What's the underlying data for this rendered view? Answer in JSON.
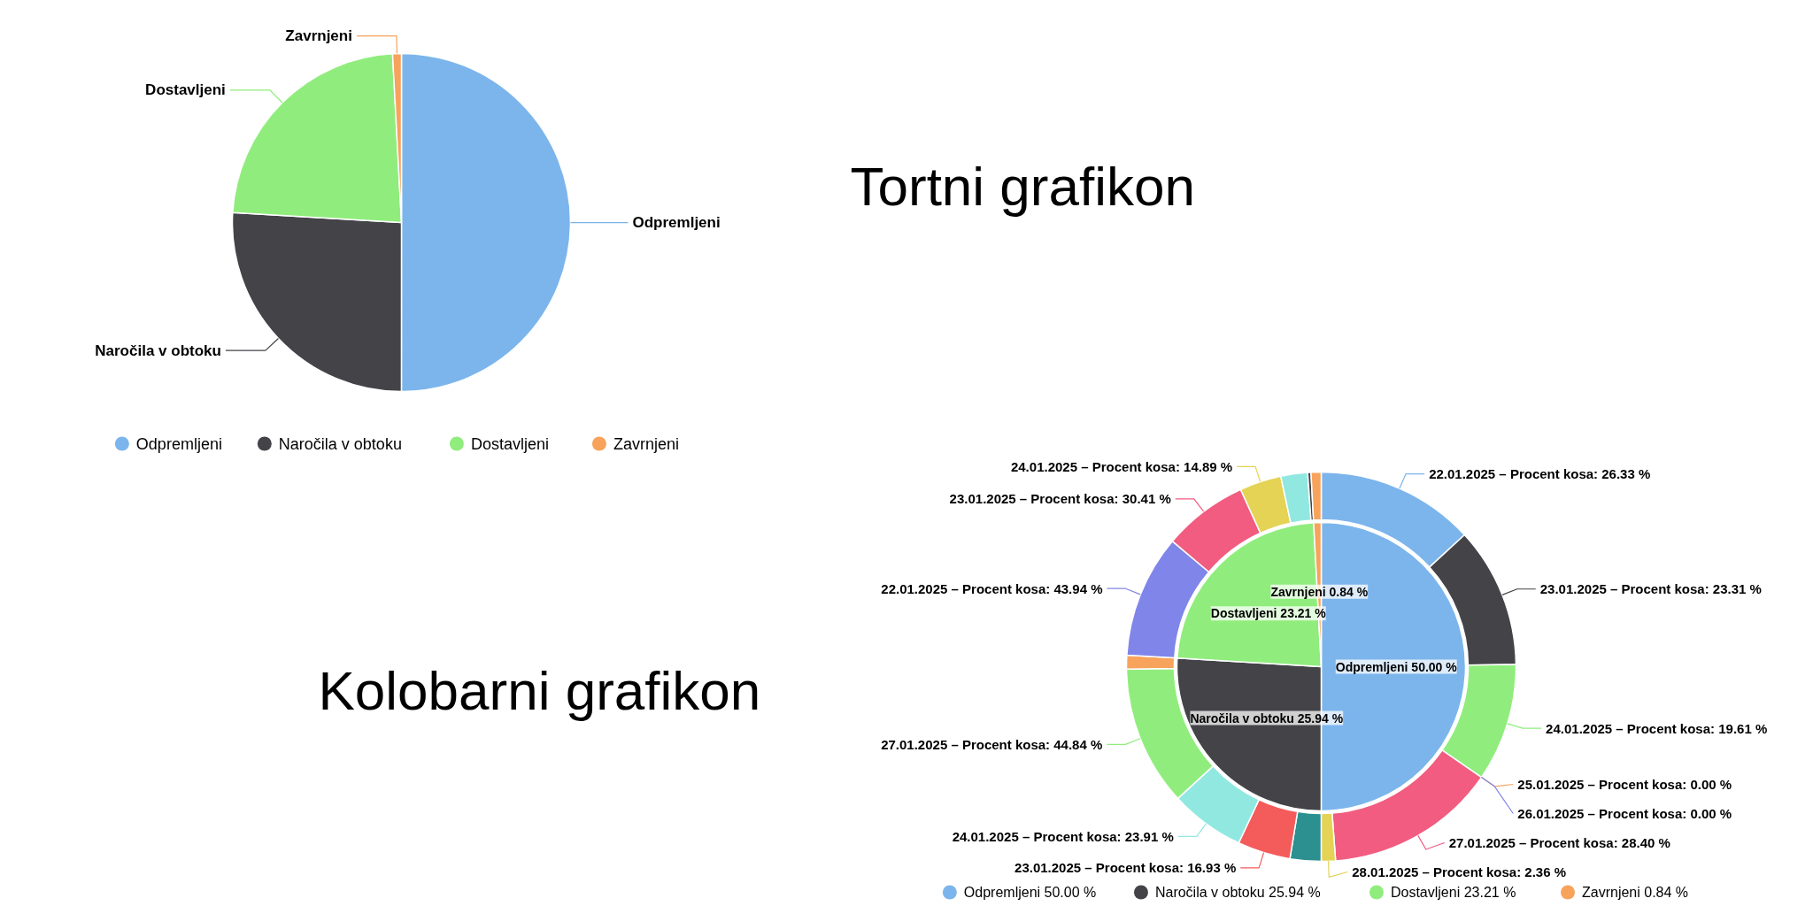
{
  "chart_data": [
    {
      "type": "pie",
      "title": "Tortni grafikon",
      "categories": [
        "Odpremljeni",
        "Naročila v obtoku",
        "Dostavljeni",
        "Zavrnjeni"
      ],
      "values": [
        50.0,
        25.94,
        23.21,
        0.84
      ],
      "colors": [
        "#7cb5ec",
        "#434348",
        "#90ed7d",
        "#f7a35c"
      ],
      "legend": "bottom"
    },
    {
      "type": "pie",
      "title": "Kolobarni grafikon",
      "legend": "bottom",
      "categories": [
        "Odpremljeni 50.00 %",
        "Naročila v obtoku 25.94 %",
        "Dostavljeni 23.21 %",
        "Zavrnjeni 0.84 %"
      ],
      "series": [
        {
          "type": "pie",
          "values": [
            50.0,
            25.94,
            23.21,
            0.84
          ],
          "colors": [
            "#7cb5ec",
            "#434348",
            "#90ed7d",
            "#f7a35c"
          ]
        },
        {
          "type": "donut",
          "x": [
            null,
            null,
            null,
            null,
            null,
            null,
            null,
            null,
            null,
            null,
            null,
            null,
            null,
            null,
            null,
            null,
            null,
            null
          ],
          "value_labels": [
            "22.01.2025 – Procent kosa: 26.33 %",
            "23.01.2025 – Procent kosa: 23.31 %",
            "24.01.2025 – Procent kosa: 19.61 %",
            "25.01.2025 – Procent kosa: 0.00 %",
            "26.01.2025 – Procent kosa: 0.00 %",
            "27.01.2025 – Procent kosa: 28.40 %",
            "28.01.2025 – Procent kosa: 2.36 %",
            null,
            "23.01.2025 – Procent kosa: 16.93 %",
            "24.01.2025 – Procent kosa: 23.91 %",
            "27.01.2025 – Procent kosa: 44.84 %",
            null,
            "22.01.2025 – Procent kosa: 43.94 %",
            "23.01.2025 – Procent kosa: 30.41 %",
            "24.01.2025 – Procent kosa: 14.89 %",
            null,
            null,
            null
          ],
          "values": [
            13.16,
            11.66,
            9.8,
            0,
            0,
            14.2,
            1.18,
            2.57,
            4.39,
            6.2,
            11.63,
            1.15,
            10.2,
            7.06,
            3.46,
            2.22,
            0.27,
            0.84
          ],
          "colors": [
            "#7cb5ec",
            "#434348",
            "#90ed7d",
            "#f7a35c",
            "#8085e9",
            "#f15c80",
            "#e4d354",
            "#2b908f",
            "#f45b5b",
            "#91e8e1",
            "#90ed7d",
            "#f7a35c",
            "#8085e9",
            "#f15c80",
            "#e4d354",
            "#91e8e1",
            "#434348",
            "#f7a35c"
          ]
        }
      ]
    }
  ]
}
